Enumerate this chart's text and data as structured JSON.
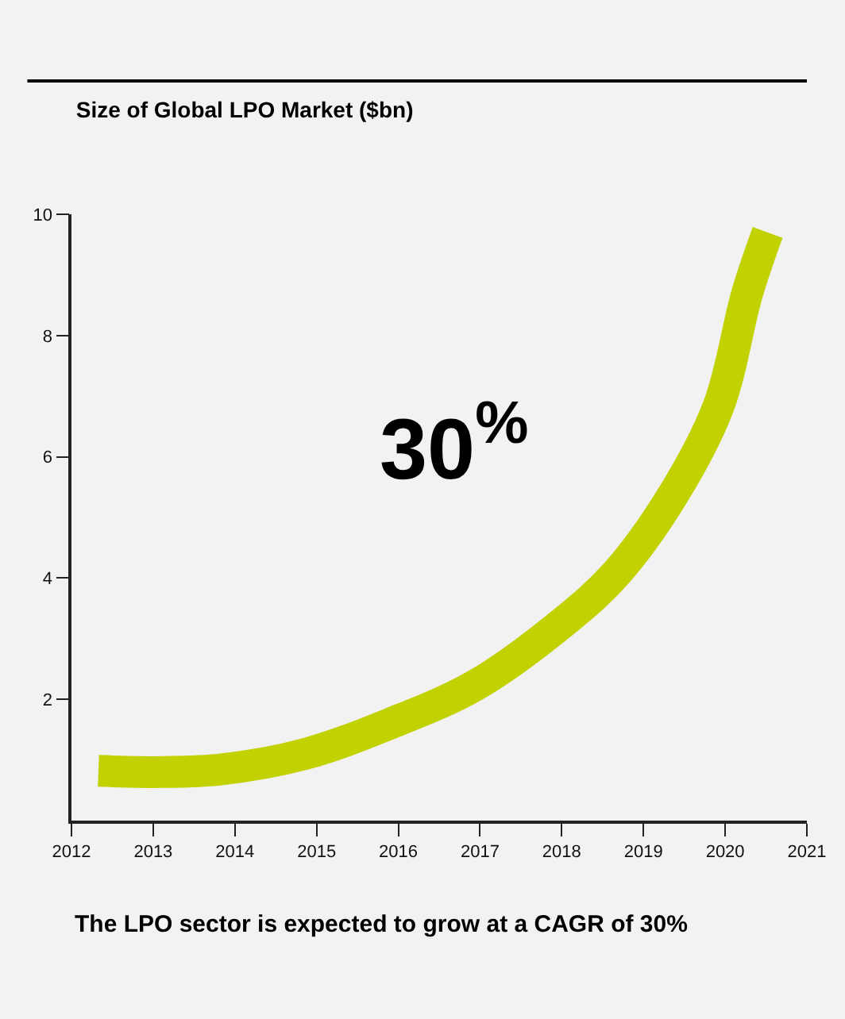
{
  "chart_data": {
    "type": "line",
    "title": "Size of Global LPO Market ($bn)",
    "x": [
      2012.33,
      2013,
      2013.8,
      2014.86,
      2015.9,
      2016.94,
      2017.98,
      2018.67,
      2019.37,
      2019.92,
      2020.27,
      2020.52
    ],
    "series": [
      {
        "color": "#c2d100",
        "values": [
          0.82,
          0.8,
          0.84,
          1.1,
          1.6,
          2.23,
          3.23,
          4.08,
          5.39,
          6.84,
          8.7,
          9.7
        ]
      }
    ],
    "xlim": [
      2012,
      2021
    ],
    "xticks": [
      2012,
      2013,
      2014,
      2015,
      2016,
      2017,
      2018,
      2019,
      2020,
      2021
    ],
    "ylim": [
      0,
      10
    ],
    "yticks": [
      2,
      4,
      6,
      8,
      10
    ],
    "grid": false,
    "annotations": [
      "30$^{%}$",
      "The LPO sector is expected to grow at a CAGR of 30%"
    ]
  }
}
